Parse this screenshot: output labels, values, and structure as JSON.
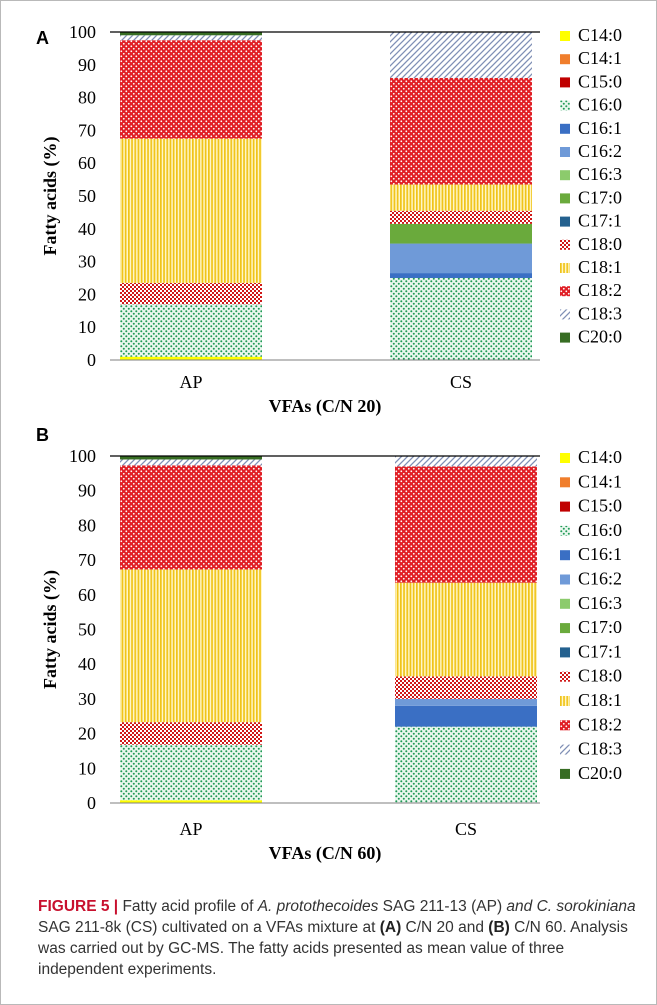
{
  "chart_data": [
    {
      "panel": "A",
      "type": "bar",
      "stacked": true,
      "xlabel": "VFAs (C/N 20)",
      "ylabel": "Fatty acids (%)",
      "ylim": [
        0,
        100
      ],
      "yticks": [
        "0",
        "10",
        "20",
        "30",
        "40",
        "50",
        "60",
        "70",
        "80",
        "90",
        "100"
      ],
      "categories": [
        "AP",
        "CS"
      ],
      "series": [
        {
          "name": "C14:0",
          "values": [
            1,
            0
          ]
        },
        {
          "name": "C14:1",
          "values": [
            0,
            0
          ]
        },
        {
          "name": "C15:0",
          "values": [
            0,
            0
          ]
        },
        {
          "name": "C16:0",
          "values": [
            16,
            25
          ]
        },
        {
          "name": "C16:1",
          "values": [
            0,
            1.5
          ]
        },
        {
          "name": "C16:2",
          "values": [
            0,
            9
          ]
        },
        {
          "name": "C16:3",
          "values": [
            0,
            0
          ]
        },
        {
          "name": "C17:0",
          "values": [
            0,
            6
          ]
        },
        {
          "name": "C17:1",
          "values": [
            0,
            0
          ]
        },
        {
          "name": "C18:0",
          "values": [
            6.5,
            4
          ]
        },
        {
          "name": "C18:1",
          "values": [
            44,
            8
          ]
        },
        {
          "name": "C18:2",
          "values": [
            30,
            32.5
          ]
        },
        {
          "name": "C18:3",
          "values": [
            1.5,
            14
          ]
        },
        {
          "name": "C20:0",
          "values": [
            1,
            0
          ]
        }
      ]
    },
    {
      "panel": "B",
      "type": "bar",
      "stacked": true,
      "xlabel": "VFAs (C/N 60)",
      "ylabel": "Fatty acids (%)",
      "ylim": [
        0,
        100
      ],
      "yticks": [
        "0",
        "10",
        "20",
        "30",
        "40",
        "50",
        "60",
        "70",
        "80",
        "90",
        "100"
      ],
      "categories": [
        "AP",
        "CS"
      ],
      "series": [
        {
          "name": "C14:0",
          "values": [
            0.8,
            0
          ]
        },
        {
          "name": "C14:1",
          "values": [
            0,
            0
          ]
        },
        {
          "name": "C15:0",
          "values": [
            0,
            0
          ]
        },
        {
          "name": "C16:0",
          "values": [
            16,
            22
          ]
        },
        {
          "name": "C16:1",
          "values": [
            0,
            6
          ]
        },
        {
          "name": "C16:2",
          "values": [
            0,
            2
          ]
        },
        {
          "name": "C16:3",
          "values": [
            0,
            0
          ]
        },
        {
          "name": "C17:0",
          "values": [
            0,
            0
          ]
        },
        {
          "name": "C17:1",
          "values": [
            0,
            0
          ]
        },
        {
          "name": "C18:0",
          "values": [
            6.5,
            6.5
          ]
        },
        {
          "name": "C18:1",
          "values": [
            44,
            27
          ]
        },
        {
          "name": "C18:2",
          "values": [
            30,
            33.5
          ]
        },
        {
          "name": "C18:3",
          "values": [
            1.7,
            3
          ]
        },
        {
          "name": "C20:0",
          "values": [
            1,
            0
          ]
        }
      ]
    }
  ],
  "legend_colors": {
    "C14:0": "#ffff00",
    "C14:1": "#f07e2c",
    "C15:0": "#c00000",
    "C16:0": "#3cb878",
    "C16:1": "#3a6fc4",
    "C16:2": "#6f9ad8",
    "C16:3": "#8ccb6c",
    "C17:0": "#6aaa3c",
    "C17:1": "#24618f",
    "C18:0": "#d01818",
    "C18:1": "#f0c419",
    "C18:2": "#e01f26",
    "C18:3": "#8899bb",
    "C20:0": "#376d23"
  },
  "caption": {
    "label": "FIGURE 5 |",
    "t1": " Fatty acid profile of ",
    "sp1": "A. protothecoides",
    "t2": " SAG 211-13 (AP) ",
    "t3": "and C. sorokiniana",
    "t4": " SAG 211-8k (CS) cultivated on a VFAs mixture at ",
    "a": "(A)",
    "t5": " C/N 20 and ",
    "b": "(B)",
    "t6": " C/N 60. Analysis was carried out by GC-MS. The fatty acids presented as mean value of three independent experiments."
  }
}
